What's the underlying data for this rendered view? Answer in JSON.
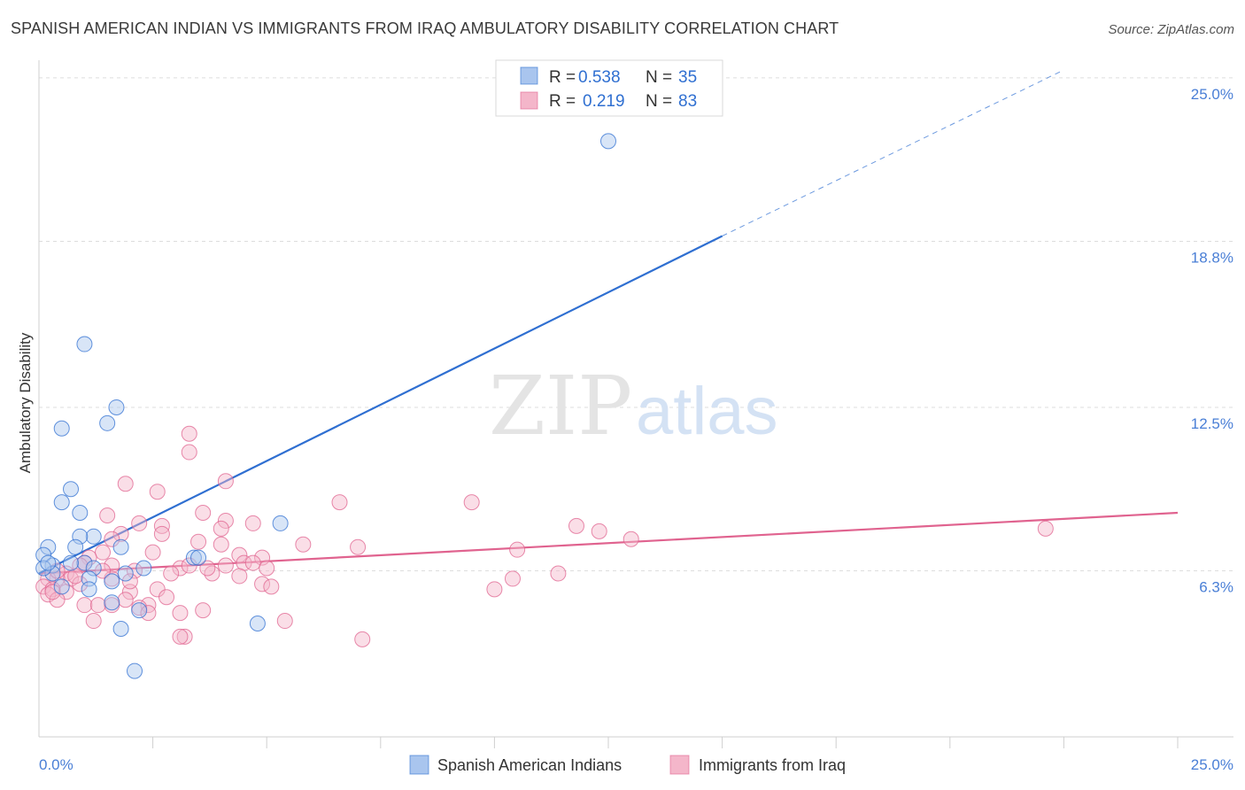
{
  "title": "SPANISH AMERICAN INDIAN VS IMMIGRANTS FROM IRAQ AMBULATORY DISABILITY CORRELATION CHART",
  "source": "Source: ZipAtlas.com",
  "watermark": {
    "zip": "ZIP",
    "atlas": "atlas"
  },
  "colors": {
    "blue": "#2f6fd1",
    "blue_fill": "#a9c5ee",
    "pink": "#e0638f",
    "pink_fill": "#f4b6ca",
    "grid": "#dddddd",
    "tick_label": "#4a7fd6"
  },
  "legend": {
    "series": [
      {
        "r_label": "R =",
        "r_value": "0.538",
        "n_label": "N =",
        "n_value": "35"
      },
      {
        "r_label": "R =",
        "r_value": "0.219",
        "n_label": "N =",
        "n_value": "83"
      }
    ]
  },
  "chart_data": {
    "type": "scatter",
    "title": "SPANISH AMERICAN INDIAN VS IMMIGRANTS FROM IRAQ AMBULATORY DISABILITY CORRELATION CHART",
    "xlabel": "",
    "ylabel": "Ambulatory Disability",
    "xlim": [
      0,
      25
    ],
    "ylim": [
      0,
      25.75
    ],
    "y_ticks": [
      {
        "value": 6.3,
        "label": "6.3%"
      },
      {
        "value": 12.5,
        "label": "12.5%"
      },
      {
        "value": 18.8,
        "label": "18.8%"
      },
      {
        "value": 25.0,
        "label": "25.0%"
      }
    ],
    "x_tick_labels": {
      "left": "0.0%",
      "right": "25.0%"
    },
    "x_minor_ticks": [
      2.5,
      5,
      7.5,
      10,
      12.5,
      15,
      17.5,
      20,
      22.5,
      25
    ],
    "series": [
      {
        "name": "Spanish American Indians",
        "color": "blue",
        "trendline": {
          "x0": 0,
          "y0": 6.2,
          "x1": 15,
          "y1": 19.0,
          "dash_to_x": 22.5,
          "dash_to_y": 25.3
        },
        "points": [
          [
            12.5,
            22.6
          ],
          [
            1.0,
            14.9
          ],
          [
            1.7,
            12.5
          ],
          [
            0.5,
            11.7
          ],
          [
            1.5,
            11.9
          ],
          [
            0.7,
            9.4
          ],
          [
            0.5,
            8.9
          ],
          [
            0.9,
            8.5
          ],
          [
            5.3,
            8.1
          ],
          [
            1.2,
            7.6
          ],
          [
            0.9,
            7.6
          ],
          [
            0.8,
            7.2
          ],
          [
            1.8,
            7.2
          ],
          [
            0.2,
            7.2
          ],
          [
            0.1,
            6.9
          ],
          [
            0.3,
            6.5
          ],
          [
            0.3,
            6.2
          ],
          [
            1.0,
            6.6
          ],
          [
            0.7,
            6.6
          ],
          [
            3.4,
            6.8
          ],
          [
            3.5,
            6.8
          ],
          [
            2.3,
            6.4
          ],
          [
            1.2,
            6.4
          ],
          [
            1.1,
            6.0
          ],
          [
            1.6,
            5.9
          ],
          [
            0.5,
            5.7
          ],
          [
            1.1,
            5.6
          ],
          [
            1.9,
            6.2
          ],
          [
            1.6,
            5.1
          ],
          [
            2.2,
            4.8
          ],
          [
            4.8,
            4.3
          ],
          [
            1.8,
            4.1
          ],
          [
            2.1,
            2.5
          ],
          [
            0.1,
            6.4
          ],
          [
            0.2,
            6.6
          ]
        ]
      },
      {
        "name": "Immigrants from Iraq",
        "color": "pink",
        "trendline": {
          "x0": 0,
          "y0": 6.2,
          "x1": 25,
          "y1": 8.5
        },
        "points": [
          [
            3.3,
            11.5
          ],
          [
            3.3,
            10.8
          ],
          [
            4.1,
            9.7
          ],
          [
            1.9,
            9.6
          ],
          [
            2.6,
            9.3
          ],
          [
            6.6,
            8.9
          ],
          [
            9.5,
            8.9
          ],
          [
            1.5,
            8.4
          ],
          [
            3.6,
            8.5
          ],
          [
            4.1,
            8.2
          ],
          [
            4.7,
            8.1
          ],
          [
            2.2,
            8.1
          ],
          [
            2.7,
            8.0
          ],
          [
            11.8,
            8.0
          ],
          [
            12.3,
            7.8
          ],
          [
            22.1,
            7.9
          ],
          [
            4.0,
            7.9
          ],
          [
            2.7,
            7.7
          ],
          [
            1.8,
            7.7
          ],
          [
            1.6,
            7.5
          ],
          [
            13.0,
            7.5
          ],
          [
            3.5,
            7.4
          ],
          [
            4.0,
            7.3
          ],
          [
            5.8,
            7.3
          ],
          [
            7.0,
            7.2
          ],
          [
            10.5,
            7.1
          ],
          [
            2.5,
            7.0
          ],
          [
            1.4,
            7.0
          ],
          [
            4.4,
            6.9
          ],
          [
            4.9,
            6.8
          ],
          [
            1.1,
            6.8
          ],
          [
            1.0,
            6.6
          ],
          [
            4.5,
            6.6
          ],
          [
            4.7,
            6.6
          ],
          [
            4.1,
            6.5
          ],
          [
            5.0,
            6.4
          ],
          [
            3.1,
            6.4
          ],
          [
            3.3,
            6.5
          ],
          [
            1.6,
            6.5
          ],
          [
            0.9,
            6.5
          ],
          [
            2.1,
            6.3
          ],
          [
            0.6,
            6.2
          ],
          [
            11.4,
            6.2
          ],
          [
            3.8,
            6.2
          ],
          [
            4.4,
            6.1
          ],
          [
            0.7,
            6.0
          ],
          [
            1.6,
            6.0
          ],
          [
            10.4,
            6.0
          ],
          [
            0.4,
            6.0
          ],
          [
            0.2,
            6.0
          ],
          [
            0.9,
            5.8
          ],
          [
            4.9,
            5.8
          ],
          [
            5.1,
            5.7
          ],
          [
            0.1,
            5.7
          ],
          [
            0.3,
            5.6
          ],
          [
            2.6,
            5.6
          ],
          [
            10.0,
            5.6
          ],
          [
            0.6,
            5.5
          ],
          [
            2.0,
            5.5
          ],
          [
            0.2,
            5.4
          ],
          [
            2.8,
            5.3
          ],
          [
            0.4,
            5.2
          ],
          [
            1.9,
            5.2
          ],
          [
            0.3,
            5.5
          ],
          [
            3.6,
            4.8
          ],
          [
            1.6,
            5.0
          ],
          [
            1.0,
            5.0
          ],
          [
            2.4,
            5.0
          ],
          [
            1.3,
            5.0
          ],
          [
            3.1,
            4.7
          ],
          [
            2.2,
            4.9
          ],
          [
            2.4,
            4.7
          ],
          [
            1.2,
            4.4
          ],
          [
            5.4,
            4.4
          ],
          [
            3.2,
            3.8
          ],
          [
            3.1,
            3.8
          ],
          [
            7.1,
            3.7
          ],
          [
            0.4,
            6.3
          ],
          [
            2.9,
            6.2
          ],
          [
            0.8,
            6.1
          ],
          [
            2.0,
            5.9
          ],
          [
            1.4,
            6.3
          ],
          [
            3.7,
            6.4
          ]
        ]
      }
    ]
  }
}
